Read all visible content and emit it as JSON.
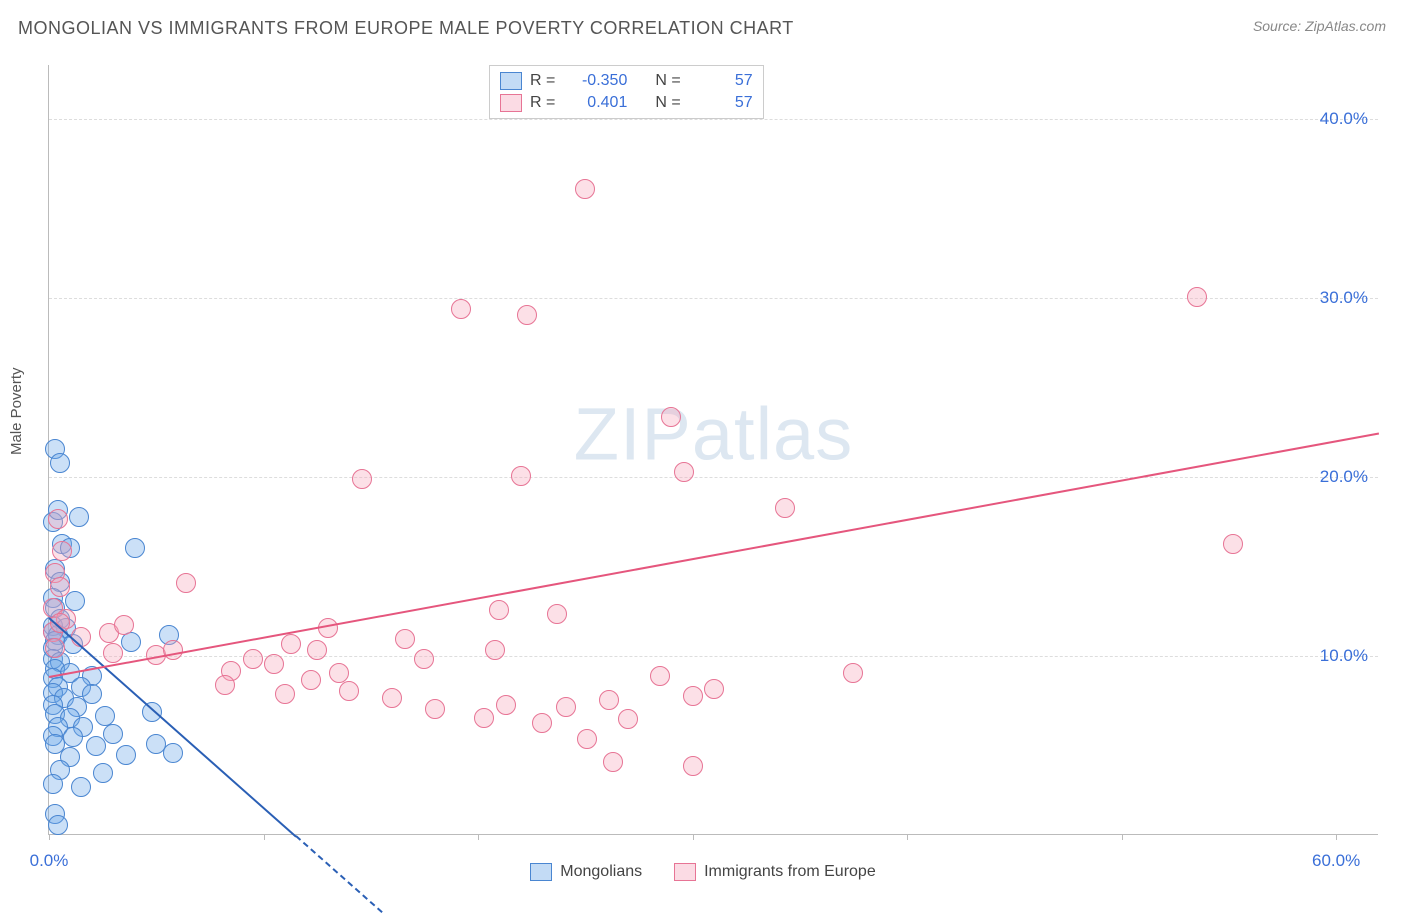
{
  "header": {
    "title": "MONGOLIAN VS IMMIGRANTS FROM EUROPE MALE POVERTY CORRELATION CHART",
    "source_prefix": "Source: ",
    "source": "ZipAtlas.com"
  },
  "watermark": {
    "zip": "ZIP",
    "atlas": "atlas"
  },
  "axes": {
    "ylabel": "Male Poverty",
    "xlim": [
      0,
      62
    ],
    "ylim": [
      0,
      43
    ],
    "yticks": [
      {
        "v": 10,
        "label": "10.0%"
      },
      {
        "v": 20,
        "label": "20.0%"
      },
      {
        "v": 30,
        "label": "30.0%"
      },
      {
        "v": 40,
        "label": "40.0%"
      }
    ],
    "xticks_visible": [
      0,
      10,
      20,
      30,
      40,
      50,
      60
    ],
    "xtick_labels": [
      {
        "v": 0,
        "label": "0.0%"
      },
      {
        "v": 60,
        "label": "60.0%"
      }
    ],
    "grid_color": "#dddddd",
    "axis_color": "#bbbbbb",
    "tick_label_color": "#3a6fd8",
    "tick_label_fontsize": 17
  },
  "chart": {
    "type": "scatter",
    "background_color": "#ffffff",
    "marker_radius": 10,
    "marker_fill_opacity": 0.35,
    "marker_stroke_width": 1.4,
    "series": [
      {
        "id": "mongolians",
        "name": "Mongolians",
        "color": "#6aa5e7",
        "stroke": "#4a86d1",
        "R": "-0.350",
        "N": "57",
        "trend": {
          "x1": 0,
          "y1": 12.2,
          "x2": 11.5,
          "y2": 0,
          "color": "#2a5fb5",
          "extend_dashed": true
        },
        "points": [
          [
            0.3,
            21.5
          ],
          [
            0.5,
            20.7
          ],
          [
            0.2,
            17.4
          ],
          [
            0.4,
            18.1
          ],
          [
            1.4,
            17.7
          ],
          [
            0.6,
            16.2
          ],
          [
            1.0,
            16.0
          ],
          [
            4.0,
            16.0
          ],
          [
            0.3,
            14.8
          ],
          [
            0.5,
            14.1
          ],
          [
            0.2,
            13.2
          ],
          [
            1.2,
            13.0
          ],
          [
            0.3,
            12.6
          ],
          [
            0.5,
            12.0
          ],
          [
            0.2,
            11.6
          ],
          [
            0.8,
            11.5
          ],
          [
            0.2,
            11.3
          ],
          [
            0.4,
            11.1
          ],
          [
            0.3,
            10.8
          ],
          [
            0.2,
            10.4
          ],
          [
            1.1,
            10.6
          ],
          [
            3.8,
            10.7
          ],
          [
            5.6,
            11.1
          ],
          [
            0.2,
            9.8
          ],
          [
            0.5,
            9.6
          ],
          [
            0.3,
            9.2
          ],
          [
            1.0,
            9.0
          ],
          [
            0.2,
            8.7
          ],
          [
            2.0,
            8.8
          ],
          [
            0.4,
            8.2
          ],
          [
            1.5,
            8.2
          ],
          [
            0.2,
            7.9
          ],
          [
            0.7,
            7.6
          ],
          [
            2.0,
            7.8
          ],
          [
            0.2,
            7.2
          ],
          [
            1.3,
            7.1
          ],
          [
            0.3,
            6.7
          ],
          [
            1.0,
            6.5
          ],
          [
            2.6,
            6.6
          ],
          [
            4.8,
            6.8
          ],
          [
            0.4,
            6.0
          ],
          [
            1.6,
            6.0
          ],
          [
            0.2,
            5.5
          ],
          [
            1.1,
            5.4
          ],
          [
            3.0,
            5.6
          ],
          [
            0.3,
            5.0
          ],
          [
            2.2,
            4.9
          ],
          [
            5.0,
            5.0
          ],
          [
            1.0,
            4.3
          ],
          [
            3.6,
            4.4
          ],
          [
            5.8,
            4.5
          ],
          [
            0.5,
            3.6
          ],
          [
            2.5,
            3.4
          ],
          [
            0.2,
            2.8
          ],
          [
            1.5,
            2.6
          ],
          [
            0.3,
            1.1
          ],
          [
            0.4,
            0.5
          ]
        ]
      },
      {
        "id": "immigrants",
        "name": "Immigrants from Europe",
        "color": "#f5a6bb",
        "stroke": "#e77495",
        "R": "0.401",
        "N": "57",
        "trend": {
          "x1": 0,
          "y1": 8.9,
          "x2": 62,
          "y2": 22.5,
          "color": "#e5567d"
        },
        "points": [
          [
            0.4,
            17.6
          ],
          [
            0.6,
            15.8
          ],
          [
            0.3,
            14.6
          ],
          [
            0.5,
            13.8
          ],
          [
            0.2,
            12.6
          ],
          [
            0.8,
            12.0
          ],
          [
            0.2,
            11.3
          ],
          [
            1.5,
            11.0
          ],
          [
            2.8,
            11.2
          ],
          [
            0.3,
            10.4
          ],
          [
            3.0,
            10.1
          ],
          [
            5.0,
            10.0
          ],
          [
            5.8,
            10.3
          ],
          [
            6.4,
            14.0
          ],
          [
            8.5,
            9.1
          ],
          [
            8.2,
            8.3
          ],
          [
            10.5,
            9.5
          ],
          [
            11.0,
            7.8
          ],
          [
            11.3,
            10.6
          ],
          [
            12.2,
            8.6
          ],
          [
            12.5,
            10.3
          ],
          [
            13.0,
            11.5
          ],
          [
            14.0,
            8.0
          ],
          [
            14.6,
            19.8
          ],
          [
            16.0,
            7.6
          ],
          [
            16.6,
            10.9
          ],
          [
            17.5,
            9.8
          ],
          [
            18.0,
            7.0
          ],
          [
            19.2,
            29.3
          ],
          [
            20.3,
            6.5
          ],
          [
            20.8,
            10.3
          ],
          [
            21.0,
            12.5
          ],
          [
            21.3,
            7.2
          ],
          [
            22.0,
            20.0
          ],
          [
            22.3,
            29.0
          ],
          [
            23.0,
            6.2
          ],
          [
            23.7,
            12.3
          ],
          [
            24.1,
            7.1
          ],
          [
            25.0,
            36.0
          ],
          [
            25.1,
            5.3
          ],
          [
            26.1,
            7.5
          ],
          [
            26.3,
            4.0
          ],
          [
            27.0,
            6.4
          ],
          [
            28.5,
            8.8
          ],
          [
            29.0,
            23.3
          ],
          [
            29.6,
            20.2
          ],
          [
            30.0,
            7.7
          ],
          [
            30.0,
            3.8
          ],
          [
            31.0,
            8.1
          ],
          [
            34.3,
            18.2
          ],
          [
            37.5,
            9.0
          ],
          [
            53.5,
            30.0
          ],
          [
            55.2,
            16.2
          ],
          [
            0.5,
            11.8
          ],
          [
            3.5,
            11.7
          ],
          [
            9.5,
            9.8
          ],
          [
            13.5,
            9.0
          ]
        ]
      }
    ]
  },
  "legend_top": {
    "r_label": "R =",
    "n_label": "N ="
  },
  "legend_bottom": {
    "items": [
      "Mongolians",
      "Immigrants from Europe"
    ]
  }
}
